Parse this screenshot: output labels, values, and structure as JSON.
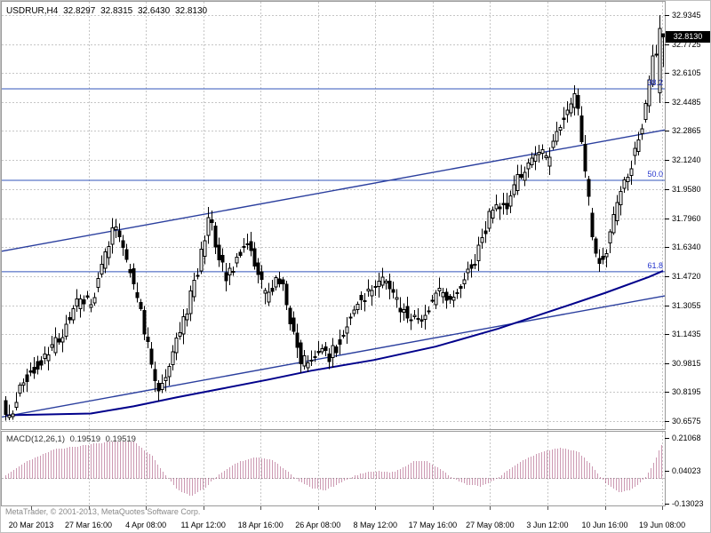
{
  "footer": {
    "copyright": "MetaTrader, © 2001-2013, MetaQuotes Software Corp."
  },
  "chart_data": {
    "type": "candlestick",
    "title": "USDRUR,H4",
    "ohlc_header": {
      "open": "32.8297",
      "high": "32.8315",
      "low": "32.6430",
      "close": "32.8130"
    },
    "current_price": "32.8130",
    "price_axis_ticks": [
      "32.9345",
      "32.7725",
      "32.6105",
      "32.4485",
      "32.2865",
      "32.1240",
      "31.9580",
      "31.7960",
      "31.6340",
      "31.4720",
      "31.3055",
      "31.1435",
      "30.9815",
      "30.8195",
      "30.6575"
    ],
    "time_axis_ticks": [
      "20 Mar 2013",
      "27 Mar 16:00",
      "4 Apr 08:00",
      "11 Apr 12:00",
      "18 Apr 16:00",
      "26 Apr 08:00",
      "8 May 12:00",
      "17 May 16:00",
      "27 May 08:00",
      "3 Jun 12:00",
      "10 Jun 16:00",
      "19 Jun 08:00"
    ],
    "fib_levels": [
      {
        "label": "38.2",
        "price": 32.521
      },
      {
        "label": "50.0",
        "price": 32.008
      },
      {
        "label": "61.8",
        "price": 31.495
      }
    ],
    "trend_channel": {
      "upper": {
        "start_price": 31.61,
        "end_price": 32.29
      },
      "lower": {
        "start_price": 30.68,
        "end_price": 31.36
      }
    },
    "moving_average": [
      [
        0,
        30.69
      ],
      [
        0.13,
        30.7
      ],
      [
        0.195,
        30.74
      ],
      [
        0.26,
        30.79
      ],
      [
        0.33,
        30.84
      ],
      [
        0.4,
        30.89
      ],
      [
        0.465,
        30.94
      ],
      [
        0.56,
        31.0
      ],
      [
        0.654,
        31.075
      ],
      [
        0.749,
        31.175
      ],
      [
        0.83,
        31.275
      ],
      [
        0.911,
        31.375
      ],
      [
        0.978,
        31.465
      ],
      [
        1,
        31.5
      ]
    ],
    "candles": {
      "count": 186,
      "price_path": [
        [
          0,
          30.75
        ],
        [
          0.011,
          30.66
        ],
        [
          0.026,
          30.85
        ],
        [
          0.046,
          30.95
        ],
        [
          0.066,
          31.02
        ],
        [
          0.086,
          31.12
        ],
        [
          0.107,
          31.28
        ],
        [
          0.12,
          31.35
        ],
        [
          0.134,
          31.3
        ],
        [
          0.147,
          31.5
        ],
        [
          0.161,
          31.65
        ],
        [
          0.172,
          31.77
        ],
        [
          0.184,
          31.6
        ],
        [
          0.197,
          31.45
        ],
        [
          0.208,
          31.3
        ],
        [
          0.222,
          31.05
        ],
        [
          0.235,
          30.82
        ],
        [
          0.249,
          30.9
        ],
        [
          0.262,
          31.1
        ],
        [
          0.278,
          31.25
        ],
        [
          0.296,
          31.5
        ],
        [
          0.314,
          31.8
        ],
        [
          0.327,
          31.6
        ],
        [
          0.341,
          31.45
        ],
        [
          0.354,
          31.55
        ],
        [
          0.37,
          31.7
        ],
        [
          0.386,
          31.5
        ],
        [
          0.4,
          31.35
        ],
        [
          0.414,
          31.45
        ],
        [
          0.427,
          31.4
        ],
        [
          0.441,
          31.15
        ],
        [
          0.454,
          31.0
        ],
        [
          0.468,
          30.97
        ],
        [
          0.481,
          31.08
        ],
        [
          0.495,
          31.02
        ],
        [
          0.508,
          31.08
        ],
        [
          0.522,
          31.2
        ],
        [
          0.539,
          31.33
        ],
        [
          0.56,
          31.4
        ],
        [
          0.58,
          31.45
        ],
        [
          0.6,
          31.32
        ],
        [
          0.616,
          31.25
        ],
        [
          0.634,
          31.22
        ],
        [
          0.651,
          31.33
        ],
        [
          0.668,
          31.4
        ],
        [
          0.684,
          31.33
        ],
        [
          0.7,
          31.45
        ],
        [
          0.716,
          31.55
        ],
        [
          0.732,
          31.72
        ],
        [
          0.749,
          31.9
        ],
        [
          0.765,
          31.85
        ],
        [
          0.781,
          32.0
        ],
        [
          0.797,
          32.08
        ],
        [
          0.814,
          32.18
        ],
        [
          0.827,
          32.12
        ],
        [
          0.843,
          32.3
        ],
        [
          0.859,
          32.42
        ],
        [
          0.873,
          32.48
        ],
        [
          0.884,
          32.1
        ],
        [
          0.895,
          31.75
        ],
        [
          0.905,
          31.55
        ],
        [
          0.916,
          31.6
        ],
        [
          0.93,
          31.8
        ],
        [
          0.943,
          31.98
        ],
        [
          0.957,
          32.12
        ],
        [
          0.968,
          32.25
        ],
        [
          0.978,
          32.45
        ],
        [
          0.989,
          32.7
        ],
        [
          1,
          32.82
        ]
      ],
      "last_bars": [
        {
          "o": 32.5,
          "h": 32.935,
          "l": 32.44,
          "c": 32.86
        },
        {
          "o": 32.8297,
          "h": 32.8315,
          "l": 32.643,
          "c": 32.813
        }
      ]
    },
    "macd": {
      "label": "MACD(12,26,1)",
      "values": [
        "0.19519",
        "0.19519"
      ],
      "axis_ticks": [
        "0.21068",
        "0.04023",
        "-0.13023"
      ],
      "path": [
        [
          0,
          0.02
        ],
        [
          0.032,
          0.09
        ],
        [
          0.073,
          0.15
        ],
        [
          0.114,
          0.17
        ],
        [
          0.154,
          0.19
        ],
        [
          0.195,
          0.19
        ],
        [
          0.222,
          0.12
        ],
        [
          0.242,
          0.02
        ],
        [
          0.262,
          -0.06
        ],
        [
          0.282,
          -0.09
        ],
        [
          0.303,
          -0.05
        ],
        [
          0.323,
          0.02
        ],
        [
          0.35,
          0.08
        ],
        [
          0.377,
          0.11
        ],
        [
          0.404,
          0.1
        ],
        [
          0.424,
          0.05
        ],
        [
          0.445,
          -0.01
        ],
        [
          0.465,
          -0.05
        ],
        [
          0.485,
          -0.06
        ],
        [
          0.505,
          -0.03
        ],
        [
          0.526,
          0.01
        ],
        [
          0.546,
          0.03
        ],
        [
          0.566,
          0.04
        ],
        [
          0.586,
          0.03
        ],
        [
          0.6,
          0.05
        ],
        [
          0.62,
          0.09
        ],
        [
          0.641,
          0.09
        ],
        [
          0.661,
          0.05
        ],
        [
          0.681,
          0.0
        ],
        [
          0.7,
          -0.03
        ],
        [
          0.722,
          -0.04
        ],
        [
          0.742,
          -0.01
        ],
        [
          0.762,
          0.04
        ],
        [
          0.789,
          0.1
        ],
        [
          0.816,
          0.14
        ],
        [
          0.843,
          0.16
        ],
        [
          0.87,
          0.14
        ],
        [
          0.891,
          0.07
        ],
        [
          0.911,
          -0.02
        ],
        [
          0.931,
          -0.07
        ],
        [
          0.951,
          -0.06
        ],
        [
          0.972,
          0.0
        ],
        [
          0.985,
          0.08
        ],
        [
          1,
          0.195
        ]
      ]
    },
    "colors": {
      "background": "#ffffff",
      "grid": "#c6c6c6",
      "candle_outline": "#000000",
      "bull_fill": "#ffffff",
      "bear_fill": "#000000",
      "fib_line": "#3355bb",
      "fib_text": "#2233cc",
      "trend_line": "#2b3f9e",
      "ma_line": "#00008b",
      "macd": "#993366",
      "zero_line": "#b8b8b8",
      "price_marker_bg": "#000000",
      "price_marker_text": "#ffffff",
      "border": "#9a9a9a"
    }
  }
}
